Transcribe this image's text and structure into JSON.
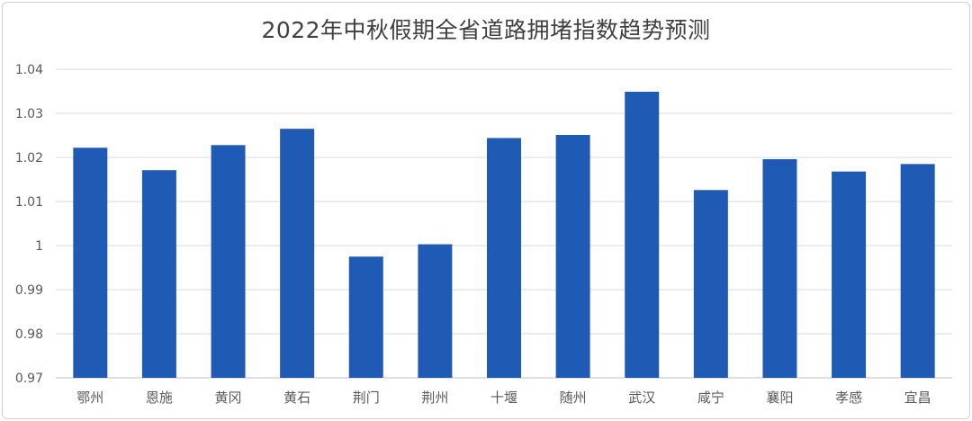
{
  "chart_data": {
    "type": "bar",
    "title": "2022年中秋假期全省道路拥堵指数趋势预测",
    "categories": [
      "鄂州",
      "恩施",
      "黄冈",
      "黄石",
      "荆门",
      "荆州",
      "十堰",
      "随州",
      "武汉",
      "咸宁",
      "襄阳",
      "孝感",
      "宜昌"
    ],
    "values": [
      1.0222,
      1.0171,
      1.0228,
      1.0265,
      0.9975,
      1.0003,
      1.0244,
      1.0251,
      1.0349,
      1.0126,
      1.0196,
      1.0168,
      1.0185
    ],
    "ylim": [
      0.97,
      1.04
    ],
    "yticks": [
      "0.97",
      "0.98",
      "0.99",
      "1",
      "1.01",
      "1.02",
      "1.03",
      "1.04"
    ],
    "xlabel": "",
    "ylabel": "",
    "grid": true,
    "bar_color": "#1f5bb5",
    "legend": "none"
  }
}
